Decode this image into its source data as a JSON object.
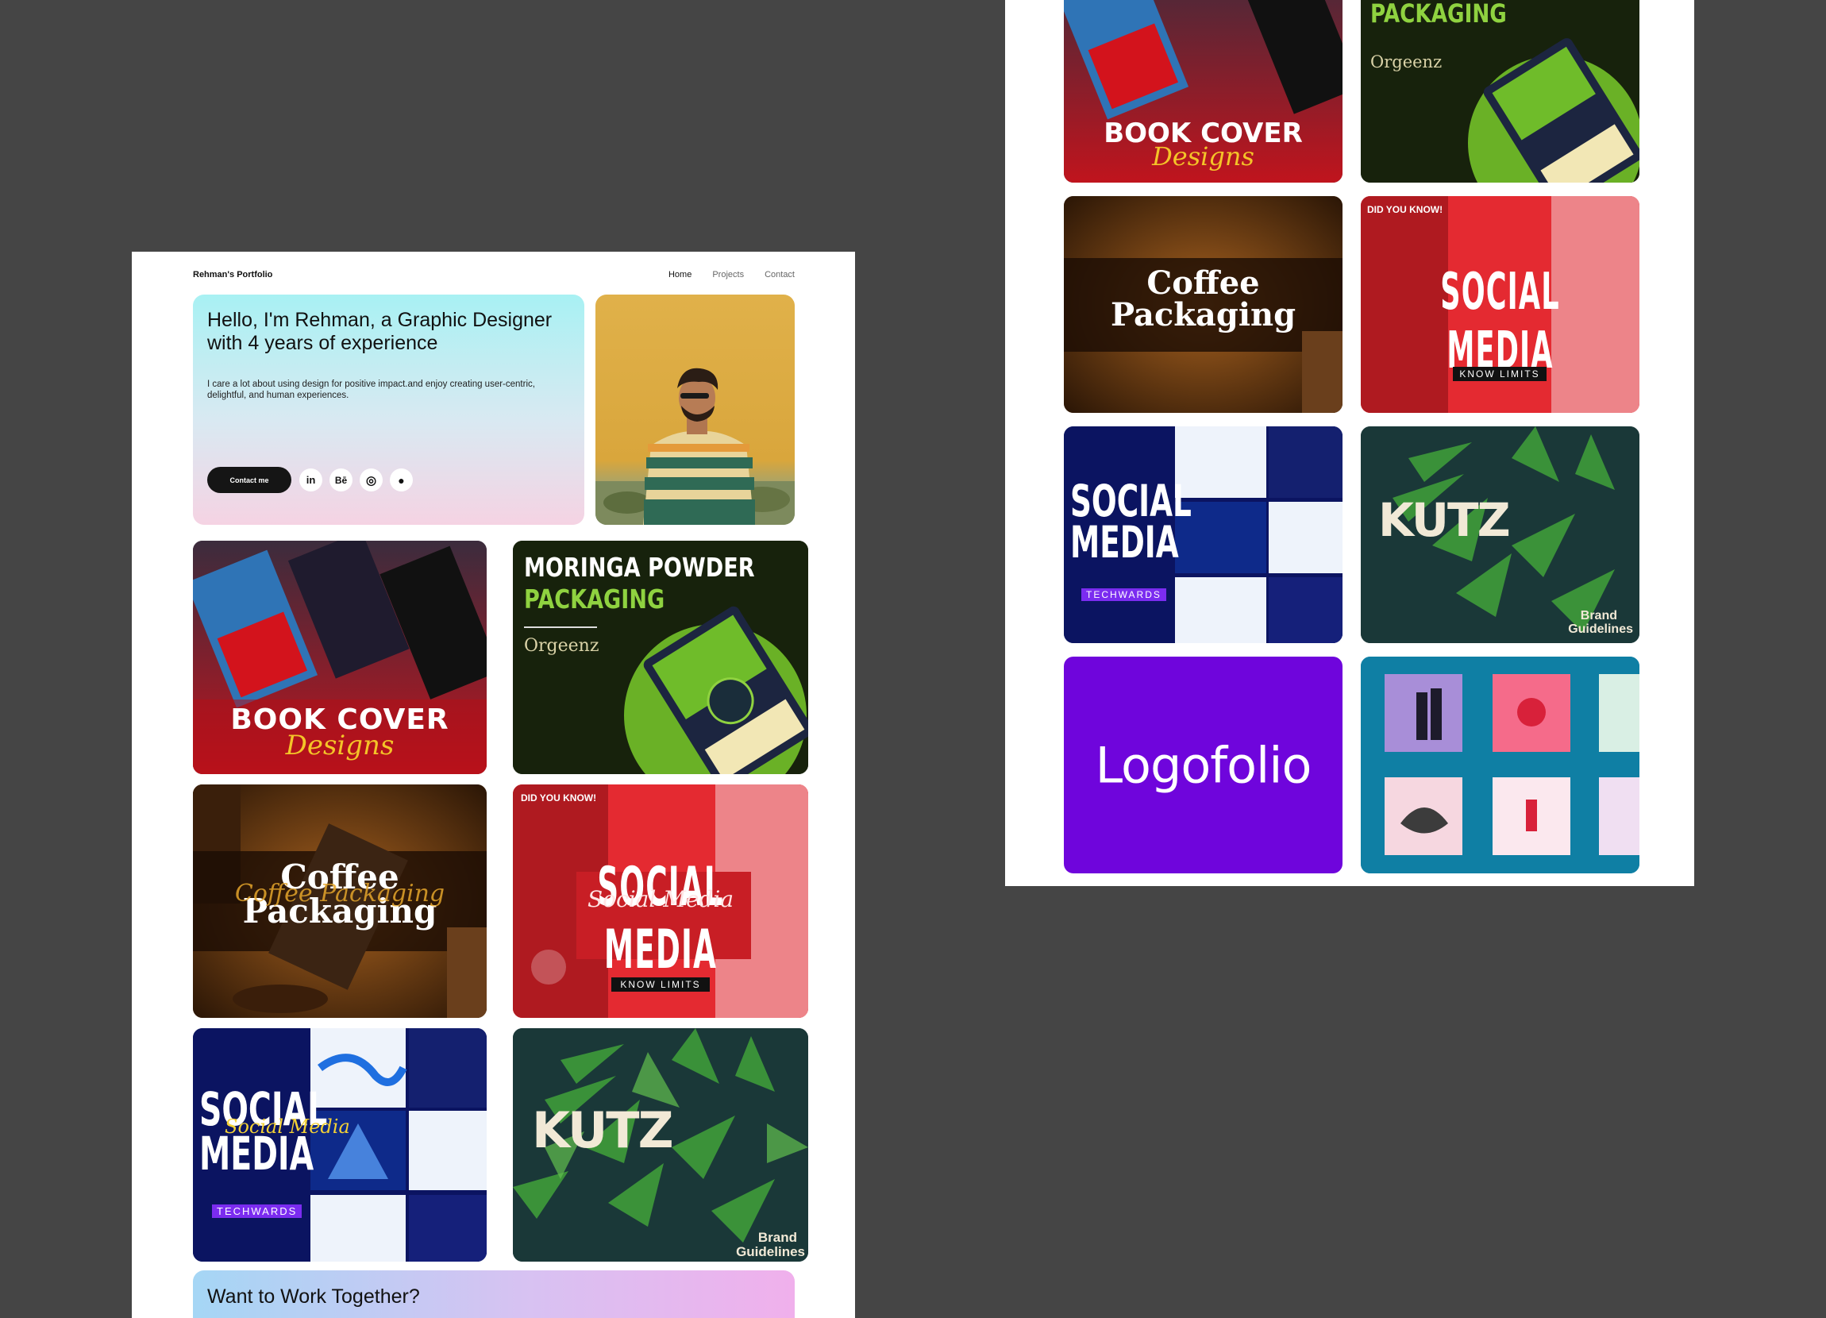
{
  "nav": {
    "brand": "Rehman's Portfolio",
    "links": [
      "Home",
      "Projects",
      "Contact"
    ]
  },
  "hero": {
    "title": "Hello, I'm Rehman, a Graphic Designer with 4 years of experience",
    "subtitle": "I care a lot about using design for positive impact.and enjoy creating user-centric, delightful, and human experiences.",
    "contact_label": "Contact me",
    "socials": [
      {
        "icon": "linkedin-icon",
        "glyph": "in"
      },
      {
        "icon": "behance-icon",
        "glyph": "Bē"
      },
      {
        "icon": "instagram-icon",
        "glyph": "◎"
      },
      {
        "icon": "github-icon",
        "glyph": "●"
      }
    ]
  },
  "projects": {
    "book_cover": {
      "line1": "BOOK COVER",
      "line2": "Designs"
    },
    "moringa": {
      "line1": "MORINGA POWDER",
      "line2": "PACKAGING",
      "brand": "Orgeenz"
    },
    "coffee": {
      "line1": "Coffee",
      "line2": "Packaging",
      "script": "Coffee Packaging"
    },
    "social_media": {
      "title": "SOCIAL MEDIA",
      "script": "Social Media",
      "tag": "KNOW LIMITS",
      "top": "DID YOU KNOW!"
    },
    "techwards": {
      "line1": "SOCIAL",
      "line2": "MEDIA",
      "script": "Social Media",
      "tag": "TECHWARDS"
    },
    "kutz": {
      "logo": "KUTZ",
      "caption_1": "Brand",
      "caption_2": "Guidelines"
    },
    "logofolio": {
      "label": "Logofolio"
    }
  },
  "cta": {
    "title": "Want to Work Together?"
  },
  "colors": {
    "background": "#454545",
    "book_red": "#d3131c",
    "moringa_green": "#1d2a11",
    "coffee_brown": "#4a2a12",
    "social_red": "#e8252f",
    "techwards_navy": "#0b1461",
    "kutz_teal": "#1b3a3a",
    "logofolio_purple": "#6f05dc",
    "instagram_teal": "#0f7fa4"
  }
}
